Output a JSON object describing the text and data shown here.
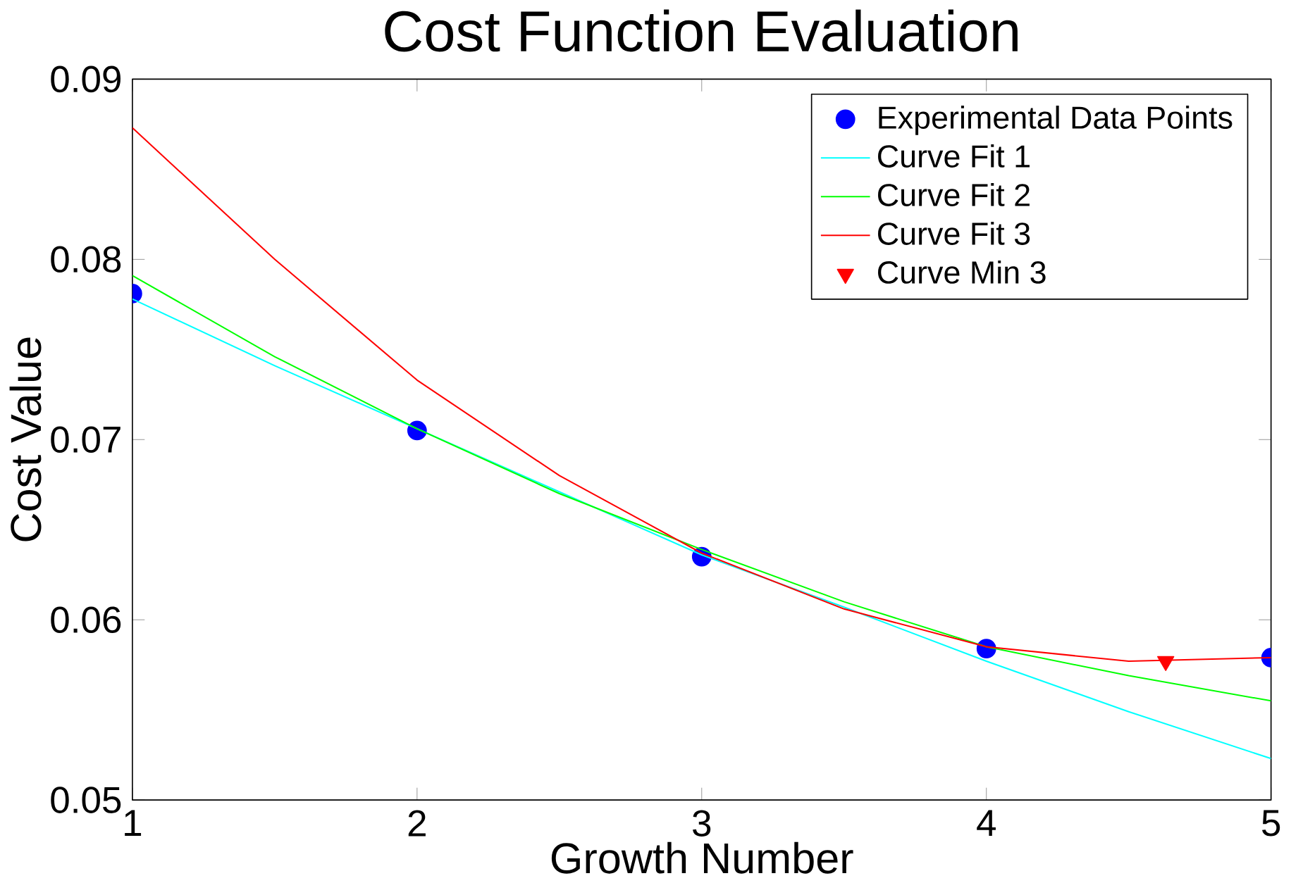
{
  "chart_data": {
    "type": "line",
    "title": "Cost Function Evaluation",
    "xlabel": "Growth Number",
    "ylabel": "Cost Value",
    "xlim": [
      1,
      5
    ],
    "ylim": [
      0.05,
      0.09
    ],
    "xticks": [
      1,
      2,
      3,
      4,
      5
    ],
    "yticks": [
      0.05,
      0.06,
      0.07,
      0.08,
      0.09
    ],
    "grid": false,
    "legend": "top right",
    "series": [
      {
        "name": "Experimental Data Points",
        "type": "scatter",
        "marker": "circle",
        "color": "#0000ff",
        "x": [
          1,
          2,
          3,
          4,
          5
        ],
        "values": [
          0.0781,
          0.0705,
          0.0635,
          0.0584,
          0.0579
        ]
      },
      {
        "name": "Curve Fit 1",
        "type": "line",
        "color": "#00ffff",
        "x": [
          1,
          1.5,
          2,
          2.5,
          3,
          3.5,
          4,
          4.5,
          5
        ],
        "values": [
          0.0778,
          0.0741,
          0.0706,
          0.0671,
          0.0636,
          0.0607,
          0.0577,
          0.0549,
          0.0523
        ]
      },
      {
        "name": "Curve Fit 2",
        "type": "line",
        "color": "#00ff00",
        "x": [
          1,
          1.5,
          2,
          2.5,
          3,
          3.5,
          4,
          4.5,
          5
        ],
        "values": [
          0.0791,
          0.0746,
          0.0706,
          0.067,
          0.0639,
          0.061,
          0.0585,
          0.0569,
          0.0555
        ]
      },
      {
        "name": "Curve Fit 3",
        "type": "line",
        "color": "#ff0000",
        "x": [
          1,
          1.5,
          2,
          2.5,
          3,
          3.5,
          4,
          4.5,
          5
        ],
        "values": [
          0.0873,
          0.08,
          0.0733,
          0.068,
          0.0637,
          0.0606,
          0.0585,
          0.0577,
          0.0579
        ]
      },
      {
        "name": "Curve Min 3",
        "type": "scatter",
        "marker": "triangle",
        "color": "#ff0000",
        "x": [
          4.63
        ],
        "values": [
          0.0577
        ]
      }
    ]
  }
}
